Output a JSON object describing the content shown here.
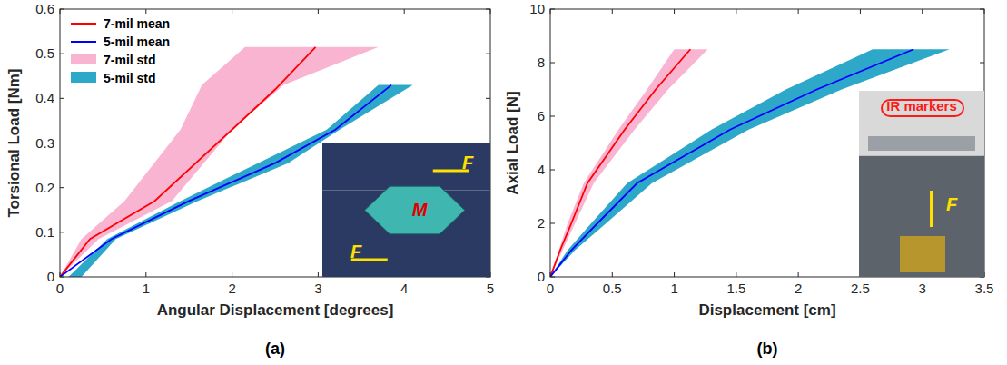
{
  "chart_data": [
    {
      "type": "line",
      "panel_label": "(a)",
      "x_label": "Angular Displacement [degrees]",
      "y_label": "Torsional Load [Nm]",
      "xlim": [
        0,
        5
      ],
      "xticks": [
        0,
        1,
        2,
        3,
        4,
        5
      ],
      "ylim": [
        0,
        0.6
      ],
      "yticks": [
        0,
        0.1,
        0.2,
        0.3,
        0.4,
        0.5,
        0.6
      ],
      "legend": "upper left",
      "series": [
        {
          "name": "7-mil mean",
          "type": "line",
          "color": "#ff0000",
          "x": [
            0,
            0.35,
            1.1,
            2.0,
            2.5,
            2.97
          ],
          "values": [
            0,
            0.085,
            0.17,
            0.33,
            0.42,
            0.515
          ]
        },
        {
          "name": "5-mil mean",
          "type": "line",
          "color": "#0000ff",
          "x": [
            0,
            0.6,
            1.5,
            2.5,
            3.2,
            3.85
          ],
          "values": [
            0,
            0.085,
            0.17,
            0.255,
            0.33,
            0.43
          ]
        },
        {
          "name": "7-mil std",
          "type": "area",
          "color": "#f9b4d2",
          "values": [
            0,
            0.085,
            0.17,
            0.33,
            0.43,
            0.515
          ],
          "x_low": [
            0,
            0.25,
            0.75,
            1.4,
            1.65,
            2.15
          ],
          "x_high": [
            0,
            0.45,
            1.3,
            2.0,
            2.6,
            3.7
          ]
        },
        {
          "name": "5-mil std",
          "type": "area",
          "color": "#2ea8c9",
          "values": [
            0,
            0.085,
            0.17,
            0.255,
            0.33,
            0.43
          ],
          "x_low": [
            0.1,
            0.55,
            1.4,
            2.3,
            3.1,
            3.7
          ],
          "x_high": [
            0.25,
            0.65,
            1.6,
            2.65,
            3.25,
            4.1
          ]
        }
      ],
      "annotations": [
        {
          "text": "F",
          "color": "#ffe000"
        },
        {
          "text": "M",
          "color": "#e00000"
        },
        {
          "text": "F",
          "color": "#ffe000"
        }
      ]
    },
    {
      "type": "line",
      "panel_label": "(b)",
      "x_label": "Displacement [cm]",
      "y_label": "Axial Load [N]",
      "xlim": [
        0,
        3.5
      ],
      "xticks": [
        0,
        0.5,
        1,
        1.5,
        2,
        2.5,
        3,
        3.5
      ],
      "ylim": [
        0,
        10
      ],
      "yticks": [
        0,
        2,
        4,
        6,
        8,
        10
      ],
      "series": [
        {
          "type": "line",
          "color": "#ff0000",
          "x": [
            0,
            0.08,
            0.17,
            0.3,
            0.6,
            0.85,
            1.13
          ],
          "values": [
            0,
            1,
            2,
            3.5,
            5.5,
            7,
            8.5
          ]
        },
        {
          "type": "line",
          "color": "#0000ff",
          "x": [
            0,
            0.17,
            0.38,
            0.7,
            1.45,
            2.15,
            2.93
          ],
          "values": [
            0,
            1,
            2,
            3.5,
            5.5,
            7,
            8.5
          ]
        },
        {
          "type": "area",
          "color": "#f9b4d2",
          "values": [
            0,
            1,
            2,
            3.5,
            5.5,
            7,
            8.5
          ],
          "x_low": [
            0,
            0.07,
            0.14,
            0.27,
            0.55,
            0.78,
            1.0
          ],
          "x_high": [
            0,
            0.1,
            0.2,
            0.35,
            0.68,
            0.95,
            1.27
          ]
        },
        {
          "type": "area",
          "color": "#2ea8c9",
          "values": [
            0,
            1,
            2,
            3.5,
            5.5,
            7,
            8.5
          ],
          "x_low": [
            0,
            0.14,
            0.33,
            0.62,
            1.3,
            1.9,
            2.6
          ],
          "x_high": [
            0,
            0.2,
            0.45,
            0.82,
            1.6,
            2.35,
            3.22
          ]
        }
      ],
      "annotations": [
        {
          "text": "IR markers",
          "color": "#ff1a1a"
        },
        {
          "text": "F",
          "color": "#ffe000"
        }
      ]
    }
  ]
}
